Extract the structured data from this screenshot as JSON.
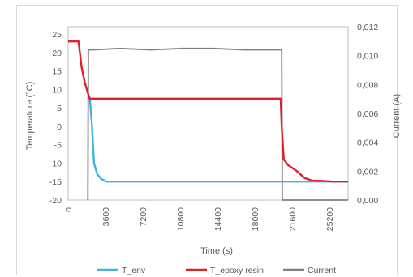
{
  "chart_data": {
    "type": "line",
    "xlabel": "Time (s)",
    "ylabel_left": "Temperature (°C)",
    "ylabel_right": "Current (A)",
    "xlim": [
      0,
      27000
    ],
    "ylim_left": [
      -20,
      27
    ],
    "ylim_right": [
      0,
      0.012
    ],
    "x_ticks": [
      0,
      3600,
      7200,
      10800,
      14400,
      18000,
      21600,
      25200
    ],
    "y_left_ticks": [
      25,
      20,
      15,
      10,
      5,
      0,
      -5,
      -10,
      -15,
      -20
    ],
    "y_right_ticks": [
      "0,012",
      "0,010",
      "0,008",
      "0,006",
      "0,004",
      "0,002",
      "0,000"
    ],
    "grid": false,
    "legend_position": "bottom",
    "series": [
      {
        "name": "T_env",
        "color": "#3fb4dc",
        "axis": "left",
        "x": [
          2100,
          2300,
          2500,
          2800,
          3200,
          3700,
          4200,
          6000,
          10000,
          15000,
          20000,
          23500,
          25000,
          27000
        ],
        "y": [
          7.5,
          0,
          -10,
          -13,
          -14.3,
          -15,
          -15,
          -15,
          -15,
          -15,
          -15,
          -15,
          -15,
          -15
        ]
      },
      {
        "name": "T_epoxy resin",
        "color": "#e0202a",
        "axis": "left",
        "x": [
          0,
          1000,
          1300,
          1600,
          1900,
          2100,
          2300,
          6000,
          12000,
          18000,
          20500,
          20600,
          20800,
          21200,
          22000,
          22800,
          23500,
          24500,
          25500,
          27000
        ],
        "y": [
          23,
          23,
          16,
          12,
          9,
          7.5,
          7.5,
          7.5,
          7.5,
          7.5,
          7.5,
          0,
          -9,
          -10.5,
          -12,
          -14,
          -14.7,
          -14.8,
          -15,
          -15
        ]
      },
      {
        "name": "Current",
        "color": "#7f7f7f",
        "axis": "right",
        "x": [
          1900,
          1950,
          2400,
          5000,
          8000,
          11000,
          14000,
          17000,
          18500,
          20600,
          20650,
          27000
        ],
        "y": [
          0,
          0.0104,
          0.0104,
          0.0105,
          0.0104,
          0.0105,
          0.0105,
          0.0104,
          0.0104,
          0.0104,
          0,
          0
        ]
      }
    ]
  }
}
